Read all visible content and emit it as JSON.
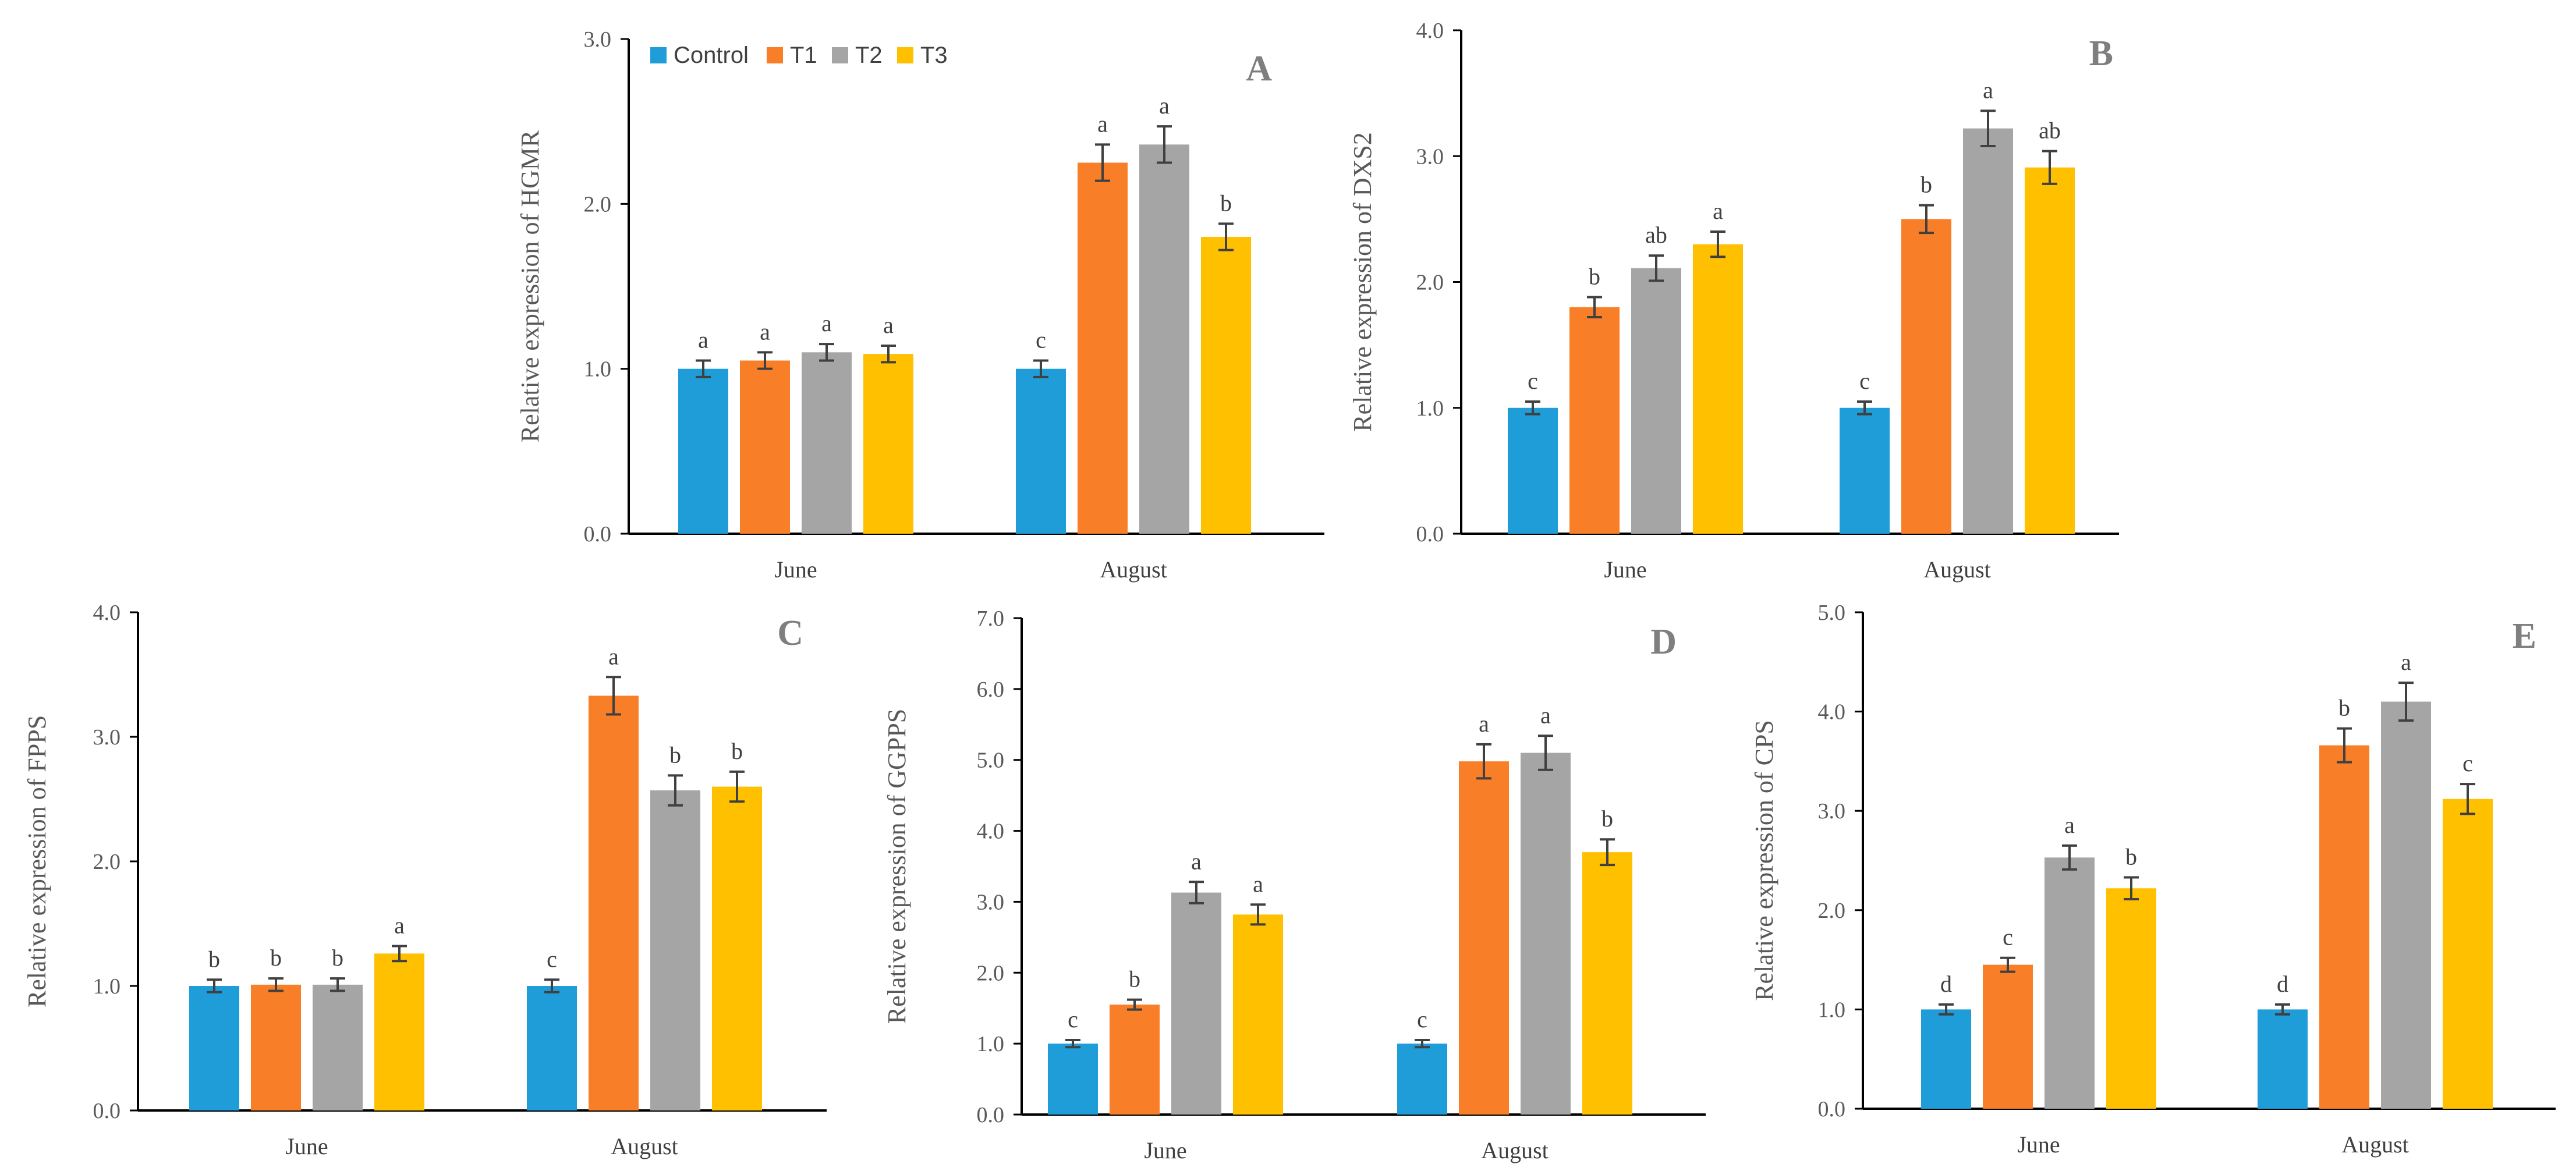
{
  "chart_data": [
    {
      "panel": "A",
      "type": "bar",
      "ylabel": "Relative expression of HGMR",
      "ylim": [
        0,
        3
      ],
      "ticks": [
        "0.0",
        "1.0",
        "2.0",
        "3.0"
      ],
      "categories": [
        "June",
        "August"
      ],
      "series": [
        {
          "name": "Control",
          "values": [
            1.0,
            1.0
          ],
          "errors": [
            0.05,
            0.05
          ],
          "letters": [
            "a",
            "c"
          ]
        },
        {
          "name": "T1",
          "values": [
            1.05,
            2.25
          ],
          "errors": [
            0.05,
            0.11
          ],
          "letters": [
            "a",
            "a"
          ]
        },
        {
          "name": "T2",
          "values": [
            1.1,
            2.36
          ],
          "errors": [
            0.05,
            0.11
          ],
          "letters": [
            "a",
            "a"
          ]
        },
        {
          "name": "T3",
          "values": [
            1.09,
            1.8
          ],
          "errors": [
            0.05,
            0.08
          ],
          "letters": [
            "a",
            "b"
          ]
        }
      ]
    },
    {
      "panel": "B",
      "type": "bar",
      "ylabel": "Relative expression of DXS2",
      "ylim": [
        0,
        4
      ],
      "ticks": [
        "0.0",
        "1.0",
        "2.0",
        "3.0",
        "4.0"
      ],
      "categories": [
        "June",
        "August"
      ],
      "series": [
        {
          "name": "Control",
          "values": [
            1.0,
            1.0
          ],
          "errors": [
            0.05,
            0.05
          ],
          "letters": [
            "c",
            "c"
          ]
        },
        {
          "name": "T1",
          "values": [
            1.8,
            2.5
          ],
          "errors": [
            0.08,
            0.11
          ],
          "letters": [
            "b",
            "b"
          ]
        },
        {
          "name": "T2",
          "values": [
            2.11,
            3.22
          ],
          "errors": [
            0.1,
            0.14
          ],
          "letters": [
            "ab",
            "a"
          ]
        },
        {
          "name": "T3",
          "values": [
            2.3,
            2.91
          ],
          "errors": [
            0.1,
            0.13
          ],
          "letters": [
            "a",
            "ab"
          ]
        }
      ]
    },
    {
      "panel": "C",
      "type": "bar",
      "ylabel": "Relative expression of FPPS",
      "ylim": [
        0,
        4
      ],
      "ticks": [
        "0.0",
        "1.0",
        "2.0",
        "3.0",
        "4.0"
      ],
      "categories": [
        "June",
        "August"
      ],
      "series": [
        {
          "name": "Control",
          "values": [
            1.0,
            1.0
          ],
          "errors": [
            0.05,
            0.05
          ],
          "letters": [
            "b",
            "c"
          ]
        },
        {
          "name": "T1",
          "values": [
            1.01,
            3.33
          ],
          "errors": [
            0.05,
            0.15
          ],
          "letters": [
            "b",
            "a"
          ]
        },
        {
          "name": "T2",
          "values": [
            1.01,
            2.57
          ],
          "errors": [
            0.05,
            0.12
          ],
          "letters": [
            "b",
            "b"
          ]
        },
        {
          "name": "T3",
          "values": [
            1.26,
            2.6
          ],
          "errors": [
            0.06,
            0.12
          ],
          "letters": [
            "a",
            "b"
          ]
        }
      ]
    },
    {
      "panel": "D",
      "type": "bar",
      "ylabel": "Relative expression of GGPPS",
      "ylim": [
        0,
        7
      ],
      "ticks": [
        "0.0",
        "1.0",
        "2.0",
        "3.0",
        "4.0",
        "5.0",
        "6.0",
        "7.0"
      ],
      "categories": [
        "June",
        "August"
      ],
      "series": [
        {
          "name": "Control",
          "values": [
            1.0,
            1.0
          ],
          "errors": [
            0.05,
            0.05
          ],
          "letters": [
            "c",
            "c"
          ]
        },
        {
          "name": "T1",
          "values": [
            1.55,
            4.98
          ],
          "errors": [
            0.07,
            0.24
          ],
          "letters": [
            "b",
            "a"
          ]
        },
        {
          "name": "T2",
          "values": [
            3.13,
            5.1
          ],
          "errors": [
            0.15,
            0.24
          ],
          "letters": [
            "a",
            "a"
          ]
        },
        {
          "name": "T3",
          "values": [
            2.82,
            3.7
          ],
          "errors": [
            0.14,
            0.18
          ],
          "letters": [
            "a",
            "b"
          ]
        }
      ]
    },
    {
      "panel": "E",
      "type": "bar",
      "ylabel": "Relative expression of CPS",
      "ylim": [
        0,
        5
      ],
      "ticks": [
        "0.0",
        "1.0",
        "2.0",
        "3.0",
        "4.0",
        "5.0"
      ],
      "categories": [
        "June",
        "August"
      ],
      "series": [
        {
          "name": "Control",
          "values": [
            1.0,
            1.0
          ],
          "errors": [
            0.05,
            0.05
          ],
          "letters": [
            "d",
            "d"
          ]
        },
        {
          "name": "T1",
          "values": [
            1.45,
            3.66
          ],
          "errors": [
            0.07,
            0.17
          ],
          "letters": [
            "c",
            "b"
          ]
        },
        {
          "name": "T2",
          "values": [
            2.53,
            4.1
          ],
          "errors": [
            0.12,
            0.19
          ],
          "letters": [
            "a",
            "a"
          ]
        },
        {
          "name": "T3",
          "values": [
            2.22,
            3.12
          ],
          "errors": [
            0.11,
            0.15
          ],
          "letters": [
            "b",
            "c"
          ]
        }
      ]
    }
  ],
  "legend": {
    "items": [
      {
        "name": "Control",
        "color": "#1F9DD9"
      },
      {
        "name": "T1",
        "color": "#F97E28"
      },
      {
        "name": "T2",
        "color": "#A5A5A5"
      },
      {
        "name": "T3",
        "color": "#FFC000"
      }
    ]
  },
  "colors": {
    "axis": "#000000",
    "error_bar": "#404040"
  }
}
